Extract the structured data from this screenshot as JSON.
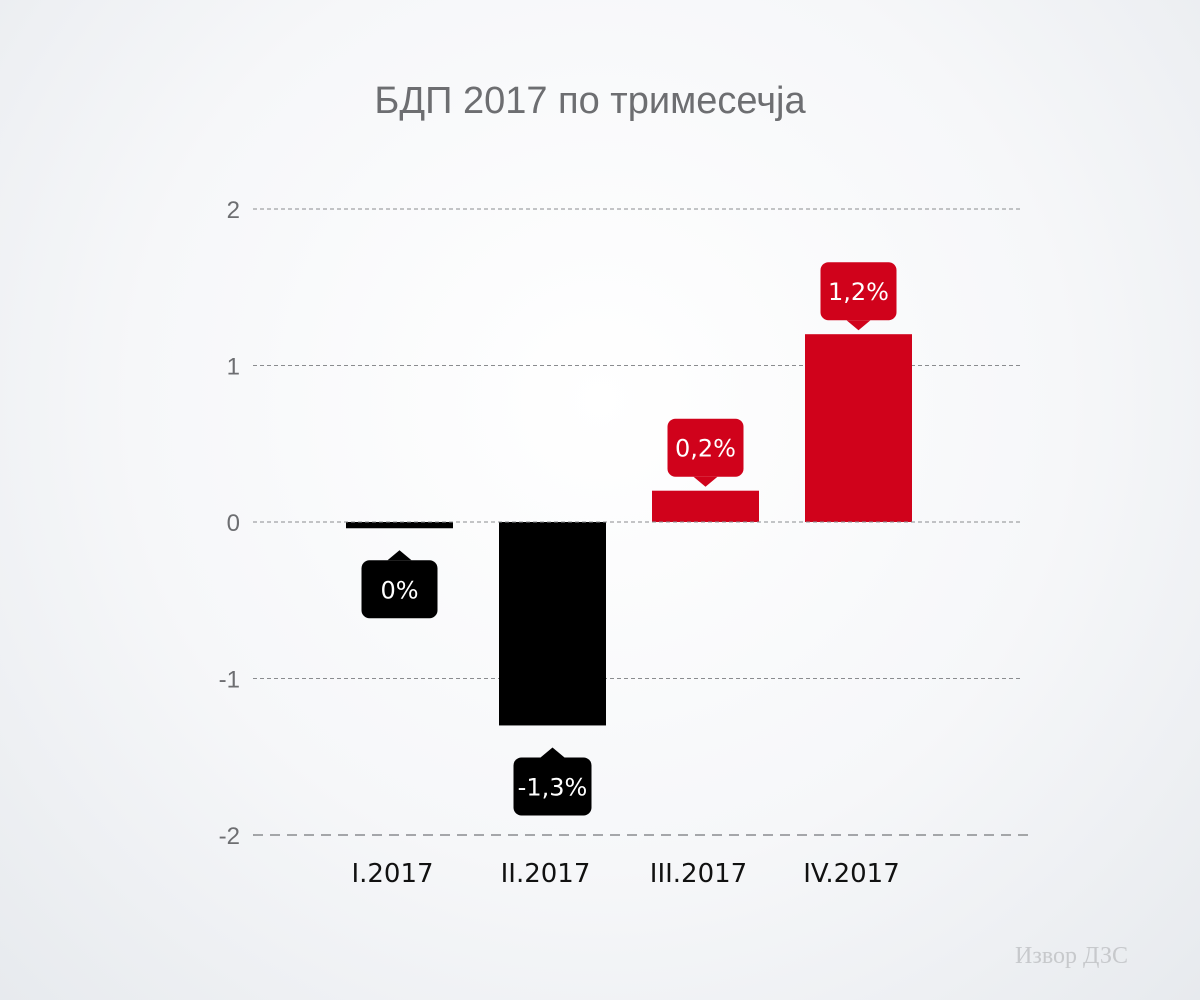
{
  "chart_data": {
    "type": "bar",
    "title": "БДП 2017 по тримесечја",
    "categories": [
      "I.2017",
      "II.2017",
      "III.2017",
      "IV.2017"
    ],
    "values": [
      -0.04,
      -1.3,
      0.2,
      1.2
    ],
    "data_labels": [
      "0%",
      "-1,3%",
      "0,2%",
      "1,2%"
    ],
    "bar_colors": [
      "#000000",
      "#000000",
      "#d0021b",
      "#d0021b"
    ],
    "y_ticks": [
      2,
      1,
      0,
      -1,
      -2
    ],
    "y_tick_labels": [
      "2",
      "1",
      "0",
      "-1",
      "-2"
    ],
    "ylim": [
      -2,
      2
    ],
    "grid": true,
    "xlabel": "",
    "ylabel": ""
  },
  "source": "Извор ДЗС",
  "colors": {
    "negative": "#000000",
    "positive": "#d0021b",
    "grid": "#8a8c8f",
    "axis_text": "#6d6e71"
  }
}
